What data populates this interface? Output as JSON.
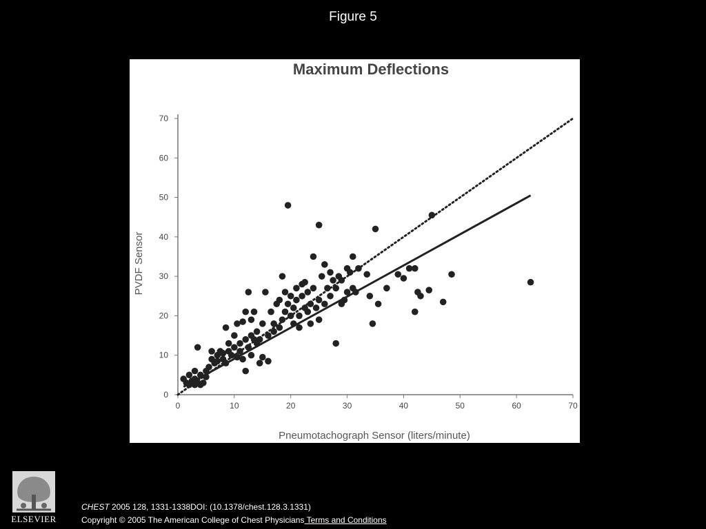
{
  "slide": {
    "title": "Figure 5"
  },
  "footer": {
    "journal": "CHEST",
    "citation": " 2005 128, 1331-1338DOI: (10.1378/chest.128.3.1331)",
    "copyright": "Copyright © 2005 The American College of Chest Physicians",
    "terms_link": " Terms and Conditions",
    "publisher": "ELSEVIER"
  },
  "colors": {
    "background": "#000000",
    "panel": "#ffffff",
    "ink": "#222222",
    "axis_text": "#444444"
  },
  "chart_data": {
    "type": "scatter",
    "title": "Maximum Deflections",
    "xlabel": "Pneumotachograph Sensor (liters/minute)",
    "ylabel": "PVDF Sensor",
    "xlim": [
      0,
      70
    ],
    "ylim": [
      0,
      70
    ],
    "xticks": [
      0,
      10,
      20,
      30,
      40,
      50,
      60,
      70
    ],
    "yticks": [
      0,
      10,
      20,
      30,
      40,
      50,
      60,
      70
    ],
    "grid": false,
    "legend": "none",
    "points": [
      [
        1,
        4
      ],
      [
        1.5,
        3
      ],
      [
        2,
        2.5
      ],
      [
        2,
        5
      ],
      [
        2.5,
        3.5
      ],
      [
        3,
        2.5
      ],
      [
        3,
        4
      ],
      [
        3,
        6
      ],
      [
        3.5,
        3
      ],
      [
        3.5,
        12
      ],
      [
        4,
        2.5
      ],
      [
        4,
        5
      ],
      [
        4.5,
        3
      ],
      [
        5,
        4.5
      ],
      [
        5,
        6
      ],
      [
        5.5,
        7
      ],
      [
        6,
        9
      ],
      [
        6,
        11
      ],
      [
        6.5,
        8
      ],
      [
        7,
        10
      ],
      [
        7,
        8.5
      ],
      [
        7.5,
        11
      ],
      [
        8,
        9
      ],
      [
        8,
        10.5
      ],
      [
        8.5,
        8
      ],
      [
        8.5,
        17
      ],
      [
        9,
        11
      ],
      [
        9,
        13
      ],
      [
        9.5,
        10
      ],
      [
        10,
        12
      ],
      [
        10,
        15
      ],
      [
        10.5,
        9.5
      ],
      [
        10.5,
        18
      ],
      [
        11,
        13
      ],
      [
        11,
        11
      ],
      [
        11.5,
        18.5
      ],
      [
        11.5,
        9
      ],
      [
        12,
        14
      ],
      [
        12,
        6
      ],
      [
        12,
        21
      ],
      [
        12.5,
        26
      ],
      [
        12.5,
        12
      ],
      [
        13,
        15
      ],
      [
        13,
        10
      ],
      [
        13,
        19
      ],
      [
        13.5,
        14
      ],
      [
        13.5,
        21
      ],
      [
        14,
        13
      ],
      [
        14,
        16
      ],
      [
        14.5,
        14
      ],
      [
        14.5,
        8
      ],
      [
        15,
        9.5
      ],
      [
        15,
        18
      ],
      [
        15.5,
        26
      ],
      [
        16,
        8.5
      ],
      [
        16,
        15
      ],
      [
        16.5,
        21
      ],
      [
        17,
        18
      ],
      [
        17,
        16
      ],
      [
        17.5,
        23
      ],
      [
        18,
        17
      ],
      [
        18,
        24
      ],
      [
        18.5,
        19
      ],
      [
        18.5,
        30
      ],
      [
        19,
        26
      ],
      [
        19,
        21
      ],
      [
        19.5,
        48
      ],
      [
        19.5,
        23
      ],
      [
        20,
        20
      ],
      [
        20,
        25
      ],
      [
        20.5,
        18
      ],
      [
        20.5,
        22
      ],
      [
        21,
        27
      ],
      [
        21,
        24
      ],
      [
        21.5,
        20
      ],
      [
        21.5,
        17
      ],
      [
        22,
        28
      ],
      [
        22,
        25
      ],
      [
        22.5,
        22
      ],
      [
        22.5,
        28.5
      ],
      [
        23,
        21
      ],
      [
        23,
        26
      ],
      [
        23.5,
        18
      ],
      [
        23.5,
        23
      ],
      [
        24,
        35
      ],
      [
        24,
        27
      ],
      [
        24.5,
        22
      ],
      [
        25,
        19
      ],
      [
        25,
        43
      ],
      [
        25,
        24
      ],
      [
        25.5,
        30
      ],
      [
        26,
        33
      ],
      [
        26,
        23
      ],
      [
        26.5,
        27
      ],
      [
        27,
        31
      ],
      [
        27,
        25
      ],
      [
        27.5,
        29
      ],
      [
        28,
        27
      ],
      [
        28,
        13
      ],
      [
        28.5,
        30
      ],
      [
        29,
        23
      ],
      [
        29,
        29
      ],
      [
        29.5,
        24
      ],
      [
        30,
        32
      ],
      [
        30,
        26
      ],
      [
        30.5,
        31
      ],
      [
        31,
        35
      ],
      [
        31,
        27
      ],
      [
        31.5,
        26
      ],
      [
        32,
        32
      ],
      [
        33.5,
        30.5
      ],
      [
        34,
        25
      ],
      [
        34.5,
        18
      ],
      [
        35,
        42
      ],
      [
        35.5,
        23
      ],
      [
        37,
        27
      ],
      [
        39,
        30.5
      ],
      [
        40,
        29.5
      ],
      [
        41,
        32
      ],
      [
        42,
        32
      ],
      [
        42,
        21
      ],
      [
        42.5,
        26
      ],
      [
        43,
        25
      ],
      [
        44.5,
        26.5
      ],
      [
        45,
        45.5
      ],
      [
        47,
        23.5
      ],
      [
        48.5,
        30.5
      ],
      [
        62.5,
        28.5
      ]
    ],
    "regression_line": {
      "style": "solid",
      "x": [
        1,
        62.5
      ],
      "y": [
        2,
        50.5
      ]
    },
    "identity_line": {
      "style": "dotted",
      "x": [
        0,
        70
      ],
      "y": [
        0,
        70
      ]
    }
  }
}
